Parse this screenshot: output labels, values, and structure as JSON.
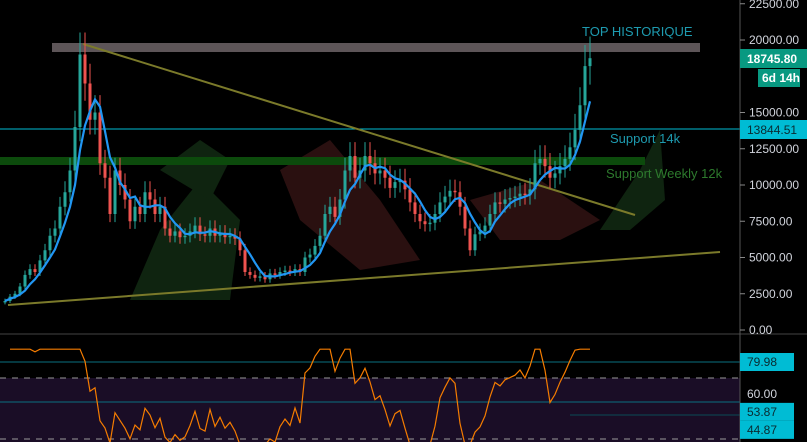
{
  "chart_data": {
    "type": "candlestick",
    "price_axis": {
      "ticks": [
        "22500.00",
        "20000.00",
        "15000.00",
        "12500.00",
        "10000.00",
        "7500.00",
        "5000.00",
        "2500.00",
        "0.00"
      ],
      "ylim": [
        0,
        22500
      ]
    },
    "last_price": {
      "label": "18745.80",
      "countdown": "6d 14h",
      "color": "#089981"
    },
    "support_line": {
      "label": "13844.51",
      "value": 13844.51,
      "color": "#00bcd4"
    },
    "closes": [
      2000,
      2300,
      2500,
      3000,
      3800,
      4200,
      4000,
      4800,
      5500,
      6500,
      7000,
      8500,
      9500,
      11000,
      14000,
      19000,
      17000,
      14500,
      15000,
      11500,
      10500,
      8000,
      11000,
      10000,
      9000,
      7500,
      8500,
      8000,
      9500,
      9000,
      8000,
      8500,
      7000,
      6500,
      6800,
      6400,
      6500,
      6800,
      7200,
      6600,
      6500,
      7000,
      6500,
      6700,
      6400,
      6500,
      6300,
      5500,
      4000,
      3800,
      3600,
      3700,
      3500,
      3900,
      3800,
      4000,
      4100,
      4000,
      4200,
      4000,
      5000,
      5200,
      5800,
      6500,
      8000,
      8500,
      7800,
      9000,
      11000,
      12000,
      10500,
      11000,
      12000,
      11500,
      10800,
      11000,
      10500,
      9800,
      10200,
      10300,
      9700,
      8800,
      8000,
      7500,
      7300,
      7400,
      8000,
      8800,
      9200,
      9600,
      9500,
      8500,
      7000,
      5500,
      6600,
      6800,
      7200,
      8000,
      8800,
      8700,
      9000,
      9100,
      9200,
      9400,
      9300,
      9700,
      11500,
      11800,
      11300,
      10500,
      10800,
      11300,
      11800,
      12600,
      13800,
      15500,
      18200,
      18745
    ],
    "annotations": {
      "top": "TOP HISTORIQUE",
      "support_14k": "Support 14k",
      "support_weekly": "Support Weekly 12k"
    },
    "colors": {
      "up": "#26a69a",
      "down": "#ef5350",
      "ma": "#2196f3",
      "rsi": "#f57c00",
      "trendline": "#7b7a2a",
      "resistance_band": "#5d5558",
      "weekly_band": "#0c4a0c"
    },
    "rsi": {
      "levels": {
        "upper": 70,
        "lower": 30
      },
      "labels": [
        {
          "text": "79.98",
          "value": 79.98
        },
        {
          "text": "60.00",
          "value": 60
        },
        {
          "text": "53.87",
          "value": 53.87
        },
        {
          "text": "44.87",
          "value": 44.87
        }
      ]
    }
  }
}
